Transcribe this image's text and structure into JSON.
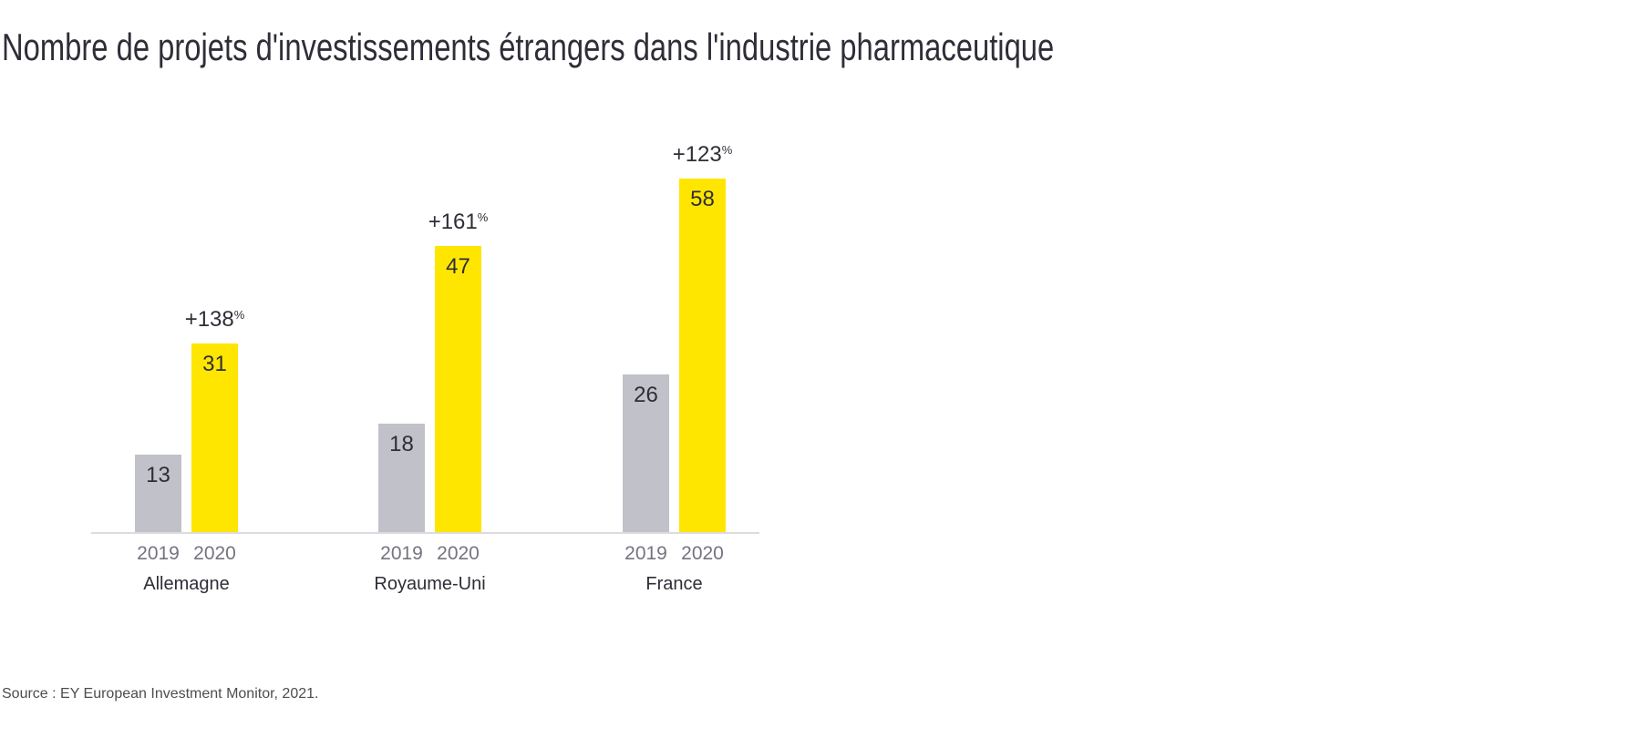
{
  "header": {
    "title": "Nombre de projets d'investissements étrangers dans l'industrie pharmaceutique"
  },
  "footer": {
    "source": "Source : EY European Investment Monitor, 2021."
  },
  "chart_data": {
    "type": "bar",
    "title": "Nombre de projets d'investissements étrangers dans l'industrie pharmaceutique",
    "categories": [
      "Allemagne",
      "Royaume-Uni",
      "France"
    ],
    "series": [
      {
        "name": "2019",
        "values": [
          13,
          18,
          26
        ],
        "color": "#c1c1c9"
      },
      {
        "name": "2020",
        "values": [
          31,
          47,
          58
        ],
        "color": "#ffe600"
      }
    ],
    "annotations": [
      {
        "category": "Allemagne",
        "text": "+138",
        "suffix": "%"
      },
      {
        "category": "Royaume-Uni",
        "text": "+161",
        "suffix": "%"
      },
      {
        "category": "France",
        "text": "+123",
        "suffix": "%"
      }
    ],
    "value_labels": "inside-top",
    "xlabel": "",
    "ylabel": "",
    "ylim": [
      0,
      62
    ],
    "grid": false,
    "legend": "none",
    "colors": {
      "axis_line": "#dcdcde",
      "year_label": "#747480",
      "category_label": "#2e2e38",
      "value_label": "#2e2e38",
      "annotation": "#2e2e38",
      "title": "#2e2e38",
      "source": "#4d4d4d"
    }
  }
}
